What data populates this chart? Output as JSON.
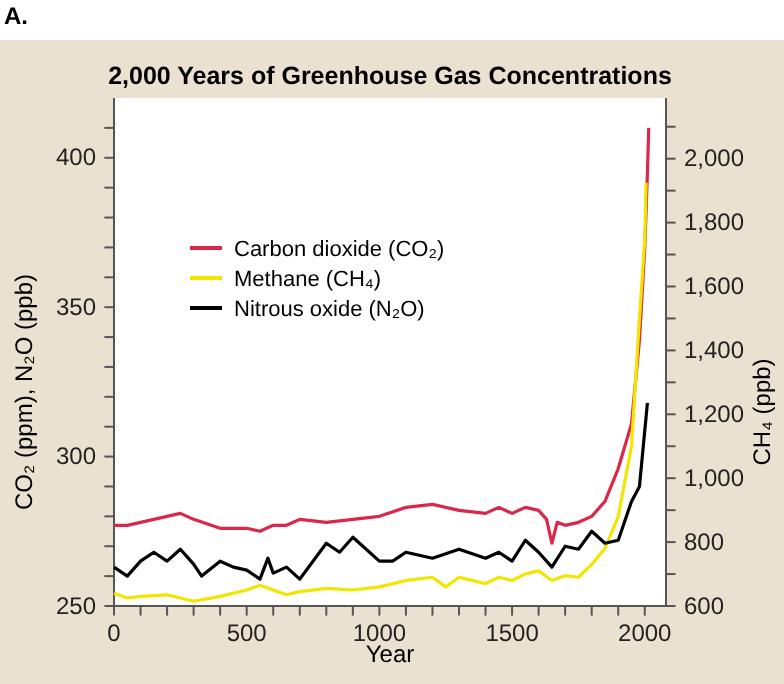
{
  "chart_data": {
    "type": "line",
    "title": "2,000 Years of Greenhouse Gas Concentrations",
    "annotations": [
      "A."
    ],
    "xlabel": "Year",
    "ylabel": "CO₂ (ppm), N₂O (ppb)",
    "y2label": "CH₄ (ppb)",
    "xlim": [
      0,
      2080
    ],
    "xticks": [
      0,
      {
        "value": 100,
        "label": null
      },
      {
        "value": 200,
        "label": null
      },
      {
        "value": 300,
        "label": null
      },
      {
        "value": 400,
        "label": null
      },
      500,
      {
        "value": 600,
        "label": null
      },
      {
        "value": 700,
        "label": null
      },
      {
        "value": 800,
        "label": null
      },
      {
        "value": 900,
        "label": null
      },
      1000,
      {
        "value": 1100,
        "label": null
      },
      {
        "value": 1200,
        "label": null
      },
      {
        "value": 1300,
        "label": null
      },
      {
        "value": 1400,
        "label": null
      },
      1500,
      {
        "value": 1600,
        "label": null
      },
      {
        "value": 1700,
        "label": null
      },
      {
        "value": 1800,
        "label": null
      },
      {
        "value": 1900,
        "label": null
      },
      2000
    ],
    "ylim": [
      250,
      420
    ],
    "yticks": [
      250,
      {
        "value": 260,
        "label": null
      },
      {
        "value": 270,
        "label": null
      },
      {
        "value": 280,
        "label": null
      },
      {
        "value": 290,
        "label": null
      },
      300,
      {
        "value": 310,
        "label": null
      },
      {
        "value": 320,
        "label": null
      },
      {
        "value": 330,
        "label": null
      },
      {
        "value": 340,
        "label": null
      },
      350,
      {
        "value": 360,
        "label": null
      },
      {
        "value": 370,
        "label": null
      },
      {
        "value": 380,
        "label": null
      },
      {
        "value": 390,
        "label": null
      },
      400,
      {
        "value": 410,
        "label": null
      }
    ],
    "y2lim": [
      600,
      2190
    ],
    "y2ticks": [
      600,
      {
        "value": 700,
        "label": null
      },
      800,
      {
        "value": 900,
        "label": null
      },
      {
        "value": 1000,
        "label": "1,000"
      },
      {
        "value": 1100,
        "label": null
      },
      {
        "value": 1200,
        "label": "1,200"
      },
      {
        "value": 1300,
        "label": null
      },
      {
        "value": 1400,
        "label": "1,400"
      },
      {
        "value": 1500,
        "label": null
      },
      {
        "value": 1600,
        "label": "1,600"
      },
      {
        "value": 1700,
        "label": null
      },
      {
        "value": 1800,
        "label": "1,800"
      },
      {
        "value": 1900,
        "label": null
      },
      {
        "value": 2000,
        "label": "2,000"
      },
      {
        "value": 2100,
        "label": null
      }
    ],
    "grid": false,
    "legend": "left",
    "line_style": "solid",
    "series": [
      {
        "name": "Carbon dioxide (CO₂)",
        "color": "#d9284a",
        "x": [
          0,
          50,
          100,
          200,
          250,
          300,
          400,
          500,
          550,
          600,
          650,
          700,
          800,
          900,
          1000,
          1100,
          1200,
          1300,
          1400,
          1450,
          1500,
          1550,
          1600,
          1630,
          1650,
          1670,
          1700,
          1750,
          1800,
          1850,
          1900,
          1950,
          1980,
          2000,
          2010,
          2015
        ],
        "values": [
          277,
          277,
          278,
          280,
          281,
          279,
          276,
          276,
          275,
          277,
          277,
          279,
          278,
          279,
          280,
          283,
          284,
          282,
          281,
          283,
          281,
          283,
          282,
          279,
          271,
          278,
          277,
          278,
          280,
          285,
          296,
          311,
          339,
          370,
          395,
          410
        ]
      },
      {
        "name": "Methane (CH₄)",
        "color": "#f2e600",
        "axis": "y2",
        "x": [
          0,
          50,
          100,
          200,
          300,
          400,
          500,
          550,
          600,
          650,
          700,
          800,
          900,
          1000,
          1100,
          1200,
          1250,
          1300,
          1400,
          1450,
          1500,
          1550,
          1600,
          1650,
          1700,
          1750,
          1800,
          1850,
          1900,
          1950,
          1980,
          2000,
          2005
        ],
        "values": [
          640,
          625,
          630,
          635,
          615,
          630,
          650,
          665,
          650,
          635,
          645,
          655,
          650,
          660,
          680,
          690,
          660,
          690,
          670,
          690,
          680,
          700,
          710,
          680,
          695,
          690,
          730,
          780,
          880,
          1100,
          1500,
          1750,
          1925
        ]
      },
      {
        "name": "Nitrous oxide (N₂O)",
        "color": "#000000",
        "x": [
          0,
          50,
          100,
          150,
          200,
          250,
          300,
          330,
          400,
          450,
          500,
          550,
          580,
          600,
          650,
          700,
          800,
          850,
          900,
          1000,
          1050,
          1100,
          1200,
          1300,
          1400,
          1450,
          1500,
          1550,
          1600,
          1650,
          1700,
          1750,
          1800,
          1850,
          1900,
          1950,
          1980,
          2010
        ],
        "values": [
          263,
          260,
          265,
          268,
          265,
          269,
          264,
          260,
          265,
          263,
          262,
          259,
          266,
          261,
          263,
          259,
          271,
          268,
          273,
          265,
          265,
          268,
          266,
          269,
          266,
          268,
          265,
          272,
          268,
          263,
          270,
          269,
          275,
          271,
          272,
          285,
          290,
          318
        ]
      }
    ]
  }
}
